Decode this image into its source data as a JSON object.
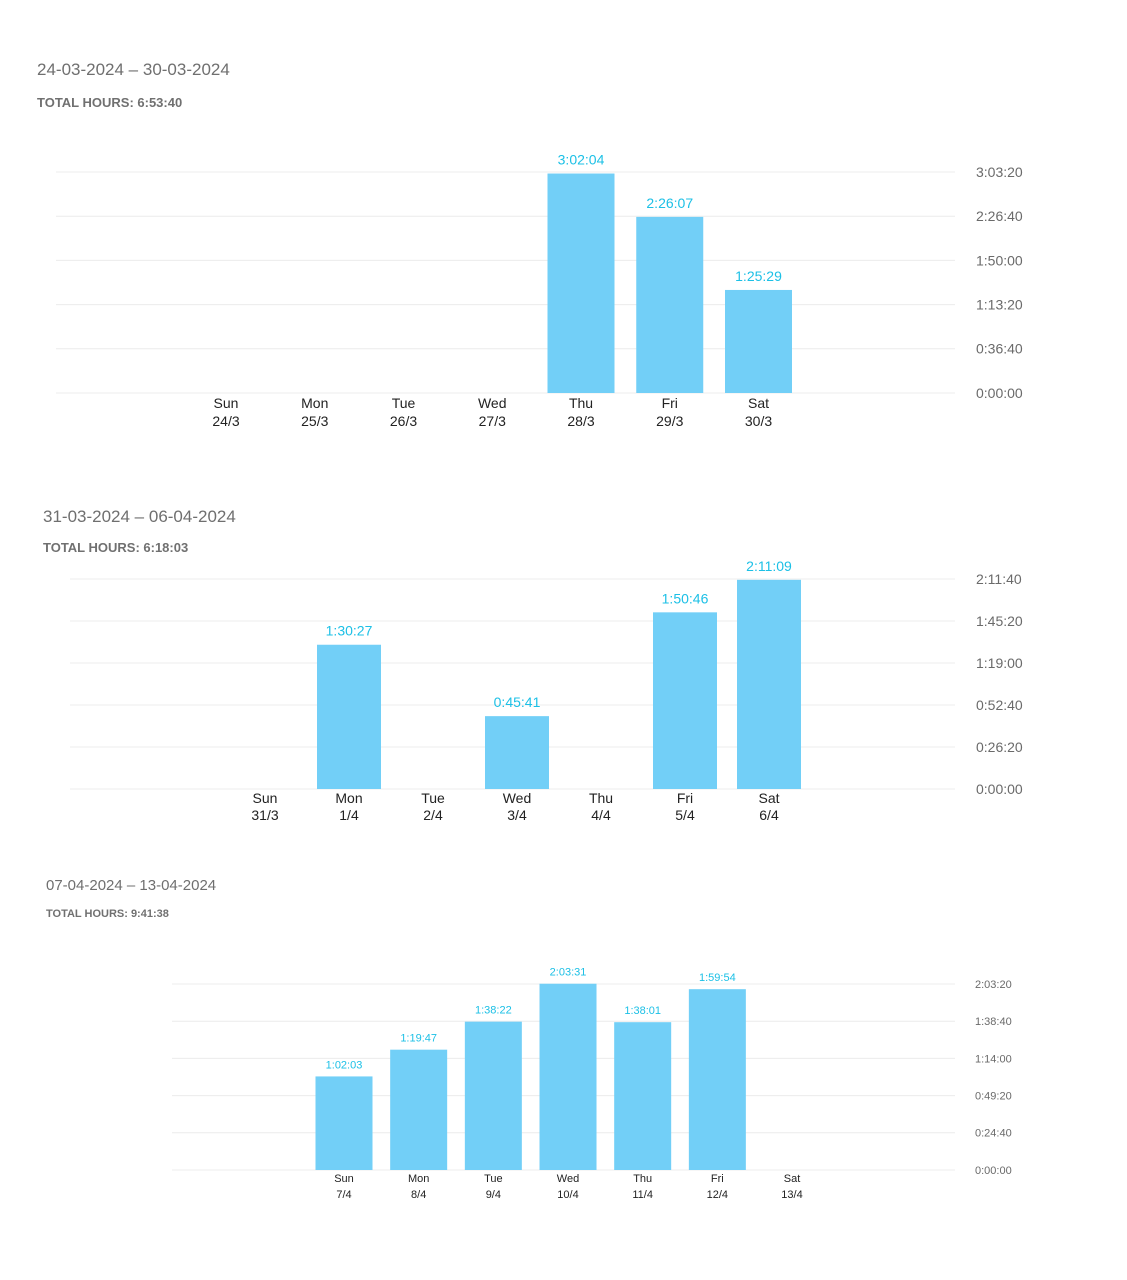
{
  "colors": {
    "bar": "#72cff7",
    "bar_label": "#1cc0e6",
    "grid": "#ececec",
    "tick": "#6a6a6a",
    "day": "#222222"
  },
  "chart_data": [
    {
      "type": "bar",
      "title": "24-03-2024 – 30-03-2024",
      "subtitle": "TOTAL HOURS: 6:53:40",
      "categories": [
        "Sun 24/3",
        "Mon 25/3",
        "Tue 26/3",
        "Wed 27/3",
        "Thu 28/3",
        "Fri 29/3",
        "Sat 30/3"
      ],
      "days": [
        "Sun",
        "Mon",
        "Tue",
        "Wed",
        "Thu",
        "Fri",
        "Sat"
      ],
      "dates": [
        "24/3",
        "25/3",
        "26/3",
        "27/3",
        "28/3",
        "29/3",
        "30/3"
      ],
      "values": [
        "",
        "",
        "",
        "",
        "3:02:04",
        "2:26:07",
        "1:25:29"
      ],
      "yticks": [
        "0:00:00",
        "0:36:40",
        "1:13:20",
        "1:50:00",
        "2:26:40",
        "3:03:20"
      ],
      "ylim": [
        "0:00:00",
        "3:03:20"
      ],
      "grid": true
    },
    {
      "type": "bar",
      "title": "31-03-2024 – 06-04-2024",
      "subtitle": "TOTAL HOURS: 6:18:03",
      "categories": [
        "Sun 31/3",
        "Mon 1/4",
        "Tue 2/4",
        "Wed 3/4",
        "Thu 4/4",
        "Fri 5/4",
        "Sat 6/4"
      ],
      "days": [
        "Sun",
        "Mon",
        "Tue",
        "Wed",
        "Thu",
        "Fri",
        "Sat"
      ],
      "dates": [
        "31/3",
        "1/4",
        "2/4",
        "3/4",
        "4/4",
        "5/4",
        "6/4"
      ],
      "values": [
        "",
        "1:30:27",
        "",
        "0:45:41",
        "",
        "1:50:46",
        "2:11:09"
      ],
      "yticks": [
        "0:00:00",
        "0:26:20",
        "0:52:40",
        "1:19:00",
        "1:45:20",
        "2:11:40"
      ],
      "ylim": [
        "0:00:00",
        "2:11:40"
      ],
      "grid": true
    },
    {
      "type": "bar",
      "title": "07-04-2024 – 13-04-2024",
      "subtitle": "TOTAL HOURS: 9:41:38",
      "categories": [
        "Sun 7/4",
        "Mon 8/4",
        "Tue 9/4",
        "Wed 10/4",
        "Thu 11/4",
        "Fri 12/4",
        "Sat 13/4"
      ],
      "days": [
        "Sun",
        "Mon",
        "Tue",
        "Wed",
        "Thu",
        "Fri",
        "Sat"
      ],
      "dates": [
        "7/4",
        "8/4",
        "9/4",
        "10/4",
        "11/4",
        "12/4",
        "13/4"
      ],
      "values": [
        "1:02:03",
        "1:19:47",
        "1:38:22",
        "2:03:31",
        "1:38:01",
        "1:59:54",
        ""
      ],
      "yticks": [
        "0:00:00",
        "0:24:40",
        "0:49:20",
        "1:14:00",
        "1:38:40",
        "2:03:20"
      ],
      "ylim": [
        "0:00:00",
        "2:03:20"
      ],
      "grid": true
    }
  ]
}
